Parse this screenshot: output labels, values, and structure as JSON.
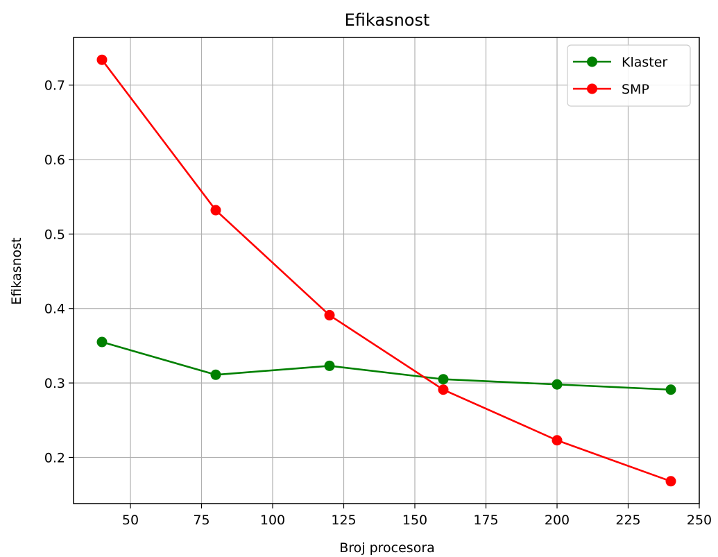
{
  "chart_data": {
    "type": "line",
    "title": "Efikasnost",
    "xlabel": "Broj procesora",
    "ylabel": "Efikasnost",
    "xlim": [
      30,
      250
    ],
    "ylim": [
      0.138,
      0.764
    ],
    "xticks": [
      50,
      75,
      100,
      125,
      150,
      175,
      200,
      225,
      250
    ],
    "yticks": [
      0.2,
      0.3,
      0.4,
      0.5,
      0.6,
      0.7
    ],
    "grid": true,
    "legend_position": "top-right",
    "series": [
      {
        "name": "Klaster",
        "color": "#008000",
        "marker": "circle",
        "x": [
          40,
          80,
          120,
          160,
          200,
          240
        ],
        "y": [
          0.355,
          0.311,
          0.323,
          0.305,
          0.298,
          0.291
        ]
      },
      {
        "name": "SMP",
        "color": "#ff0000",
        "marker": "circle",
        "x": [
          40,
          80,
          120,
          160,
          200,
          240
        ],
        "y": [
          0.734,
          0.532,
          0.391,
          0.291,
          0.223,
          0.168
        ]
      }
    ]
  }
}
